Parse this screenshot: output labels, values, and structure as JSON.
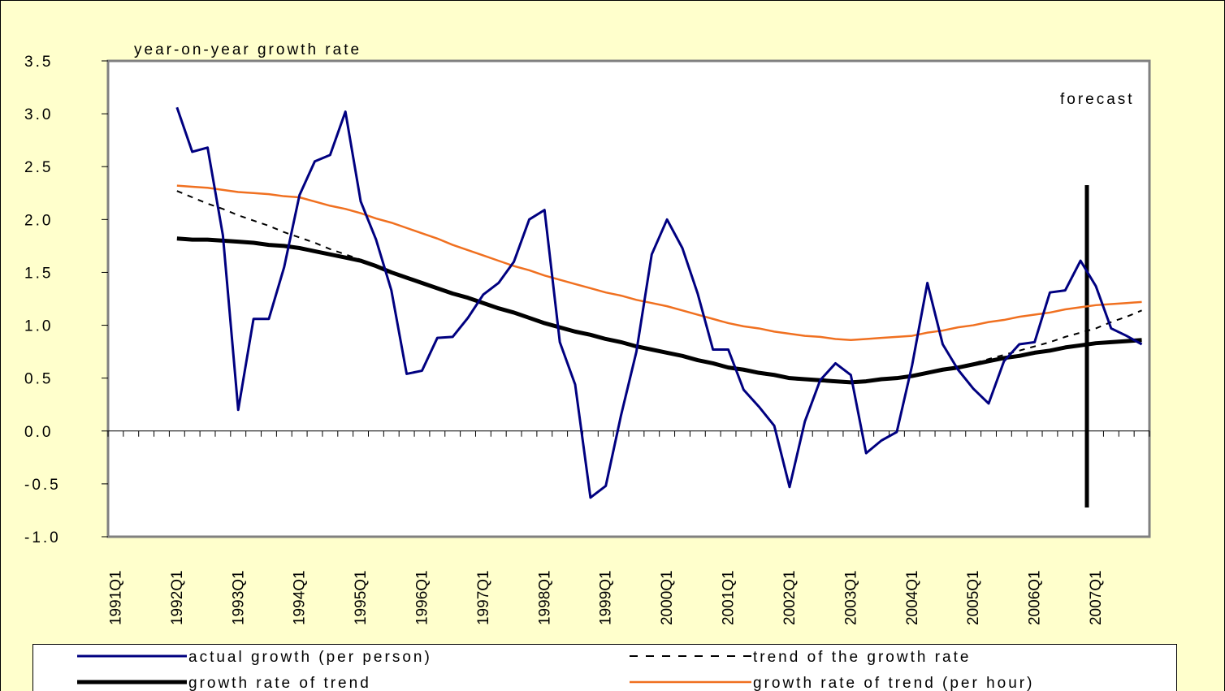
{
  "chart_data": {
    "type": "line",
    "title": "year-on-year growth rate",
    "annotation": "forecast",
    "categories": [
      "1991Q1",
      null,
      null,
      null,
      "1992Q1",
      null,
      null,
      null,
      "1993Q1",
      null,
      null,
      null,
      "1994Q1",
      null,
      null,
      null,
      "1995Q1",
      null,
      null,
      null,
      "1996Q1",
      null,
      null,
      null,
      "1997Q1",
      null,
      null,
      null,
      "1998Q1",
      null,
      null,
      null,
      "1999Q1",
      null,
      null,
      null,
      "2000Q1",
      null,
      null,
      null,
      "2001Q1",
      null,
      null,
      null,
      "2002Q1",
      null,
      null,
      null,
      "2003Q1",
      null,
      null,
      null,
      "2004Q1",
      null,
      null,
      null,
      "2005Q1",
      null,
      null,
      null,
      "2006Q1",
      null,
      null,
      null,
      "2007Q1",
      null,
      null,
      null
    ],
    "series": [
      {
        "name": "actual growth (per person)",
        "color": "#000080",
        "style": "solid",
        "values": [
          null,
          null,
          null,
          null,
          3.06,
          2.64,
          2.68,
          1.85,
          0.2,
          1.06,
          1.06,
          1.55,
          2.23,
          2.55,
          2.61,
          3.02,
          2.17,
          1.81,
          1.33,
          0.54,
          0.57,
          0.88,
          0.89,
          1.07,
          1.29,
          1.4,
          1.6,
          2.0,
          2.09,
          0.84,
          0.44,
          -0.63,
          -0.52,
          0.15,
          0.75,
          1.67,
          2.0,
          1.73,
          1.3,
          0.77,
          0.77,
          0.39,
          0.23,
          0.05,
          -0.53,
          0.09,
          0.48,
          0.64,
          0.53,
          -0.21,
          -0.09,
          -0.01,
          0.62,
          1.4,
          0.82,
          0.58,
          0.4,
          0.26,
          0.66,
          0.82,
          0.84,
          1.31,
          1.33,
          1.61,
          1.37,
          0.97,
          0.9,
          0.82
        ]
      },
      {
        "name": "trend of the growth rate",
        "color": "#000000",
        "style": "dashed",
        "values": [
          null,
          null,
          null,
          null,
          2.27,
          2.21,
          2.15,
          2.1,
          2.04,
          1.99,
          1.94,
          1.88,
          1.83,
          1.78,
          1.72,
          1.67,
          1.62,
          1.57,
          1.51,
          1.46,
          1.41,
          1.36,
          1.31,
          1.26,
          1.21,
          1.16,
          1.12,
          1.07,
          1.02,
          0.98,
          0.94,
          0.91,
          0.87,
          0.84,
          0.8,
          0.77,
          0.74,
          0.71,
          0.67,
          0.64,
          0.6,
          0.57,
          0.54,
          0.52,
          0.49,
          0.48,
          0.47,
          0.46,
          0.45,
          0.47,
          0.49,
          0.5,
          0.52,
          0.55,
          0.58,
          0.61,
          0.64,
          0.68,
          0.72,
          0.76,
          0.8,
          0.84,
          0.89,
          0.93,
          0.97,
          1.03,
          1.08,
          1.14
        ]
      },
      {
        "name": "growth rate of trend",
        "color": "#000000",
        "style": "solid",
        "values": [
          null,
          null,
          null,
          null,
          1.82,
          1.81,
          1.81,
          1.8,
          1.79,
          1.78,
          1.76,
          1.75,
          1.73,
          1.7,
          1.67,
          1.64,
          1.61,
          1.56,
          1.5,
          1.45,
          1.4,
          1.35,
          1.3,
          1.26,
          1.21,
          1.16,
          1.12,
          1.07,
          1.02,
          0.98,
          0.94,
          0.91,
          0.87,
          0.84,
          0.8,
          0.77,
          0.74,
          0.71,
          0.67,
          0.64,
          0.6,
          0.58,
          0.55,
          0.53,
          0.5,
          0.49,
          0.48,
          0.47,
          0.46,
          0.47,
          0.49,
          0.5,
          0.52,
          0.55,
          0.58,
          0.6,
          0.63,
          0.66,
          0.69,
          0.71,
          0.74,
          0.76,
          0.79,
          0.81,
          0.83,
          0.84,
          0.85,
          0.86
        ]
      },
      {
        "name": "growth rate of trend (per hour)",
        "color": "#f07020",
        "style": "solid",
        "values": [
          null,
          null,
          null,
          null,
          2.32,
          2.31,
          2.3,
          2.28,
          2.26,
          2.25,
          2.24,
          2.22,
          2.21,
          2.17,
          2.13,
          2.1,
          2.06,
          2.01,
          1.97,
          1.92,
          1.87,
          1.82,
          1.76,
          1.71,
          1.66,
          1.61,
          1.56,
          1.52,
          1.47,
          1.43,
          1.39,
          1.35,
          1.31,
          1.28,
          1.24,
          1.21,
          1.18,
          1.14,
          1.1,
          1.06,
          1.02,
          0.99,
          0.97,
          0.94,
          0.92,
          0.9,
          0.89,
          0.87,
          0.86,
          0.87,
          0.88,
          0.89,
          0.9,
          0.93,
          0.95,
          0.98,
          1.0,
          1.03,
          1.05,
          1.08,
          1.1,
          1.12,
          1.15,
          1.17,
          1.19,
          1.2,
          1.21,
          1.22
        ]
      }
    ],
    "ylim": [
      -1,
      3.5
    ],
    "yticks": [
      {
        "value": -1,
        "label": "-1.0"
      },
      {
        "value": -0.5,
        "label": "-0.5"
      },
      {
        "value": 0,
        "label": "0.0"
      },
      {
        "value": 0.5,
        "label": "0.5"
      },
      {
        "value": 1,
        "label": "1.0"
      },
      {
        "value": 1.5,
        "label": "1.5"
      },
      {
        "value": 2,
        "label": "2.0"
      },
      {
        "value": 2.5,
        "label": "2.5"
      },
      {
        "value": 3,
        "label": "3.0"
      },
      {
        "value": 3.5,
        "label": "3.5"
      }
    ],
    "grid": false
  }
}
